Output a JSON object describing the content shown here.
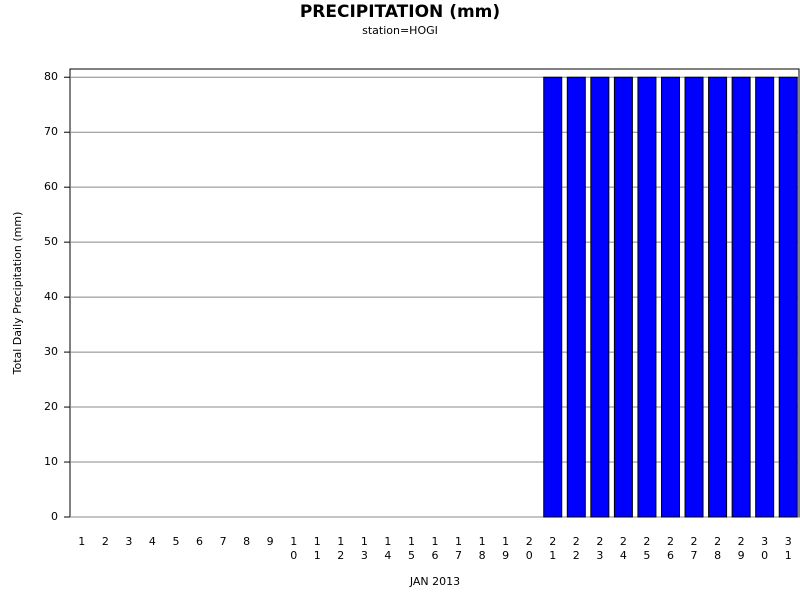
{
  "chart_data": {
    "type": "bar",
    "title": "PRECIPITATION (mm)",
    "subtitle": "station=HOGI",
    "x_label": "JAN 2013",
    "y_label": "Total Daily Precipitation (mm)",
    "categories": [
      "1",
      "2",
      "3",
      "4",
      "5",
      "6",
      "7",
      "8",
      "9",
      "10",
      "11",
      "12",
      "13",
      "14",
      "15",
      "16",
      "17",
      "18",
      "19",
      "20",
      "21",
      "22",
      "23",
      "24",
      "25",
      "26",
      "27",
      "28",
      "29",
      "30",
      "31"
    ],
    "values": [
      0,
      0,
      0,
      0,
      0,
      0,
      0,
      0,
      0,
      0,
      0,
      0,
      0,
      0,
      0,
      0,
      0,
      0,
      0,
      0,
      80,
      80,
      80,
      80,
      80,
      80,
      80,
      80,
      80,
      80,
      80
    ],
    "color": "#0000ff",
    "ylim": [
      0,
      81.5
    ],
    "yticks": [
      0,
      10,
      20,
      30,
      40,
      50,
      60,
      70,
      80
    ],
    "grid": true
  }
}
